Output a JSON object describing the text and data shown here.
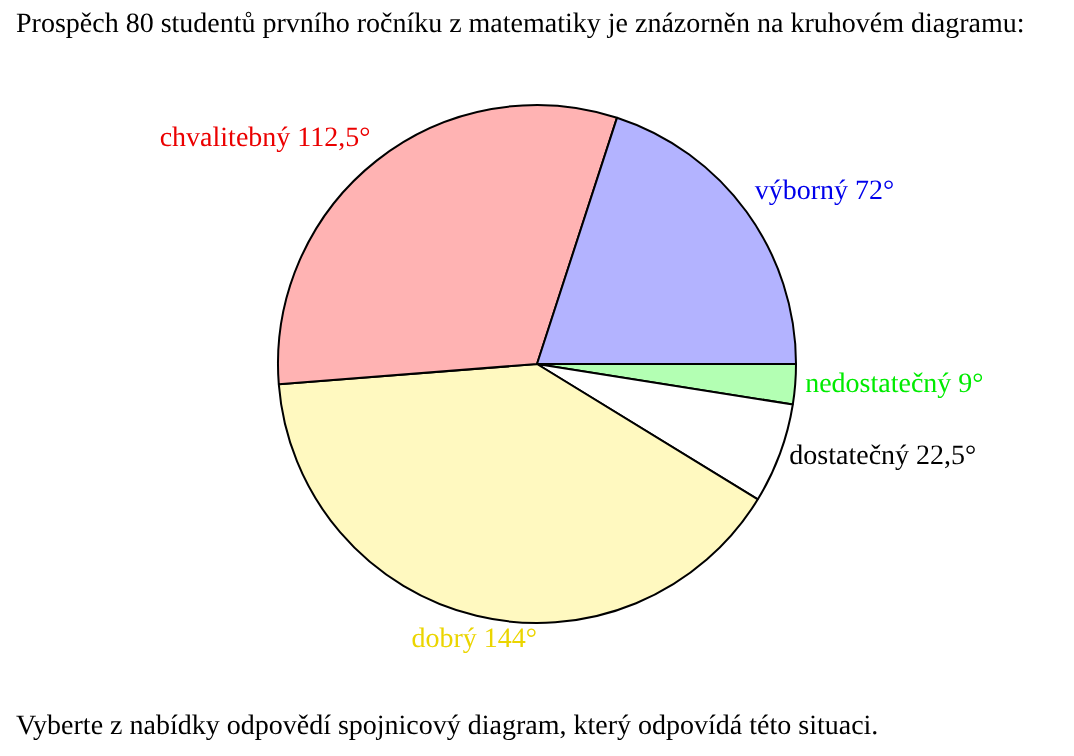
{
  "chart_data": {
    "type": "pie",
    "title": "Prospěch 80 studentů prvního ročníku z matematiky je znázorněn na kruhovém diagramu:",
    "categories": [
      "nedostatečný",
      "dostatečný",
      "dobrý",
      "chvalitebný",
      "výborný"
    ],
    "values": [
      9,
      22.5,
      144,
      112.5,
      72
    ],
    "value_labels": [
      "9°",
      "22,5°",
      "144°",
      "112,5°",
      "72°"
    ],
    "colors": [
      "#b3ffb3",
      "#ffffff",
      "#fff9c0",
      "#ffb3b3",
      "#b3b3ff"
    ],
    "legend": false,
    "annotations": [
      "Vyberte z nabídky odpovědí spojnicový diagram, který odpovídá této situaci."
    ]
  }
}
